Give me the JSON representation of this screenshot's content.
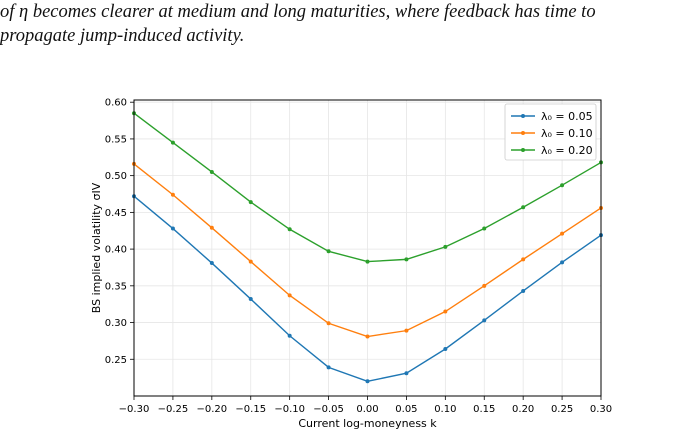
{
  "paragraph": {
    "line1": "of η becomes clearer at medium and long maturities, where feedback has time to",
    "line2": "propagate jump-induced activity."
  },
  "chart_data": {
    "type": "line",
    "x": [
      -0.3,
      -0.25,
      -0.2,
      -0.15,
      -0.1,
      -0.05,
      0.0,
      0.05,
      0.1,
      0.15,
      0.2,
      0.25,
      0.3
    ],
    "series": [
      {
        "name": "λ₀ = 0.05",
        "color": "#1f77b4",
        "values": [
          0.472,
          0.428,
          0.381,
          0.332,
          0.282,
          0.239,
          0.22,
          0.231,
          0.264,
          0.303,
          0.343,
          0.382,
          0.419
        ]
      },
      {
        "name": "λ₀ = 0.10",
        "color": "#ff7f0e",
        "values": [
          0.516,
          0.474,
          0.429,
          0.383,
          0.337,
          0.299,
          0.281,
          0.289,
          0.315,
          0.35,
          0.386,
          0.421,
          0.456
        ]
      },
      {
        "name": "λ₀ = 0.20",
        "color": "#2ca02c",
        "values": [
          0.585,
          0.545,
          0.505,
          0.464,
          0.427,
          0.397,
          0.383,
          0.386,
          0.403,
          0.428,
          0.457,
          0.487,
          0.518
        ]
      }
    ],
    "xlabel": "Current log-moneyness k",
    "ylabel": "BS implied volatility σIV",
    "xlim": [
      -0.3,
      0.3
    ],
    "ylim": [
      0.2,
      0.6
    ],
    "xticks": [
      "−0.30",
      "−0.25",
      "−0.20",
      "−0.15",
      "−0.10",
      "−0.05",
      "0.00",
      "0.05",
      "0.10",
      "0.15",
      "0.20",
      "0.25",
      "0.30"
    ],
    "yticks": [
      "0.25",
      "0.30",
      "0.35",
      "0.40",
      "0.45",
      "0.50",
      "0.55",
      "0.60"
    ],
    "grid": true,
    "legend": "top-right"
  }
}
